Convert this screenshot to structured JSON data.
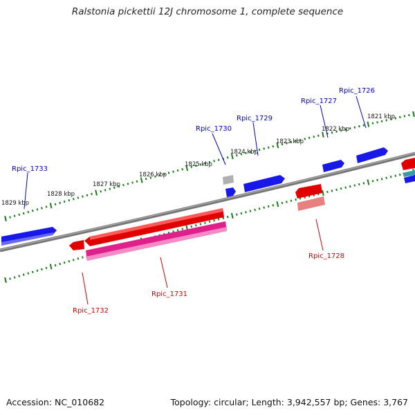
{
  "title": "Ralstonia pickettii 12J chromosome 1, complete sequence",
  "accession_text": "Accession: NC_010682",
  "topology_text": "Topology: circular; Length: 3,942,557 bp; Genes: 3,767",
  "kbp_labels": [
    "1829 kbp",
    "1828 kbp",
    "1827 kbp",
    "1826 kbp",
    "1825 kbp",
    "1824 kbp",
    "1823 kbp",
    "1822 kbp",
    "1821 kbp"
  ],
  "gene_labels": {
    "forward": [
      "Rpic_1733",
      "Rpic_1730",
      "Rpic_1729",
      "Rpic_1727",
      "Rpic_1726"
    ],
    "reverse": [
      "Rpic_1732",
      "Rpic_1731",
      "Rpic_1728"
    ]
  },
  "colors": {
    "backbone": "#808080",
    "forward_gene": "#1010e0",
    "reverse_gene": "#e00000",
    "rna_gene": "#e0208a",
    "pseudo_gene": "#e88080",
    "tick": "#1a7a1a",
    "forward_label": "#0000c0",
    "reverse_label": "#d00000"
  }
}
